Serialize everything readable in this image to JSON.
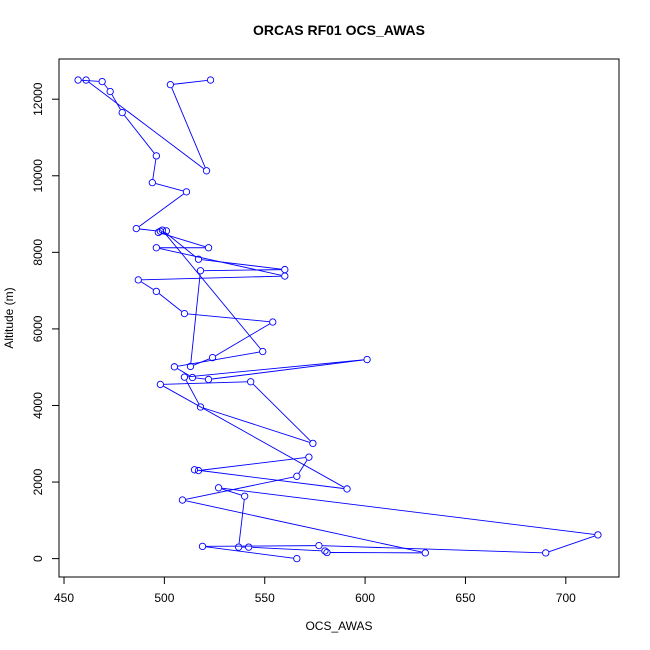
{
  "chart_data": {
    "type": "line",
    "title": "ORCAS RF01 OCS_AWAS",
    "xlabel": "OCS_AWAS",
    "ylabel": "Altitude (m)",
    "xlim": [
      447.5,
      726.5
    ],
    "ylim": [
      -480,
      13050
    ],
    "xticks": [
      450,
      500,
      550,
      600,
      650,
      700
    ],
    "yticks": [
      0,
      2000,
      4000,
      6000,
      8000,
      10000,
      12000
    ],
    "grid": false,
    "legend": "none",
    "marker": "open-circle",
    "line_color": "#0000ff",
    "series": [
      {
        "x": [
          523,
          503,
          521,
          461,
          457,
          469,
          473,
          479,
          496,
          494,
          511,
          486,
          498,
          501,
          497,
          522,
          496,
          560,
          487,
          496,
          510,
          554,
          524,
          513,
          518,
          560,
          517,
          499,
          549,
          505,
          514,
          522,
          601,
          510,
          518,
          574,
          543,
          498,
          591,
          515,
          517,
          572,
          566,
          509,
          630,
          581,
          580,
          542,
          537,
          540,
          527,
          716,
          690,
          577,
          519,
          566
        ],
        "y": [
          12500,
          12380,
          10130,
          12500,
          12500,
          12460,
          12200,
          11650,
          10520,
          9820,
          9580,
          8620,
          8550,
          8560,
          8520,
          8120,
          8120,
          7380,
          7280,
          6980,
          6400,
          6180,
          5250,
          5020,
          7520,
          7550,
          7820,
          8580,
          5410,
          5010,
          4730,
          4680,
          5200,
          4740,
          3960,
          3010,
          4620,
          4550,
          1820,
          2320,
          2300,
          2650,
          2150,
          1530,
          150,
          160,
          200,
          300,
          300,
          1630,
          1850,
          620,
          150,
          340,
          320,
          0
        ]
      }
    ]
  }
}
